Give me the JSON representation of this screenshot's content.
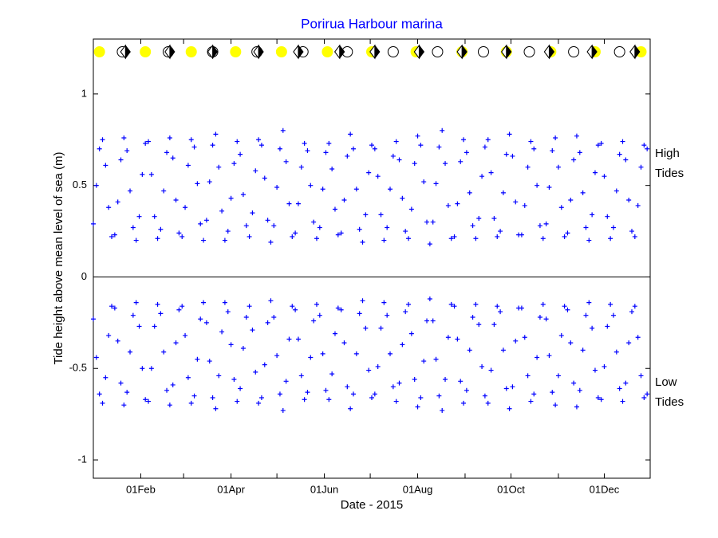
{
  "chart_data": {
    "type": "scatter",
    "title": "Porirua Harbour marina",
    "x_label": "Date - 2015",
    "y_label": "Tide height above mean level of sea (m)",
    "xlim": [
      1,
      365
    ],
    "ylim": [
      -1.1,
      1.3
    ],
    "xticks": [
      {
        "value": 32,
        "label": "01Feb"
      },
      {
        "value": 91,
        "label": "01Apr"
      },
      {
        "value": 152,
        "label": "01Jun"
      },
      {
        "value": 213,
        "label": "01Aug"
      },
      {
        "value": 274,
        "label": "01Oct"
      },
      {
        "value": 335,
        "label": "01Dec"
      }
    ],
    "xminorticks": [
      60,
      121,
      182,
      244,
      305
    ],
    "yticks": [
      -1,
      -0.5,
      0,
      0.5,
      1
    ],
    "zero_line": true,
    "title_color": "#0000ff",
    "x": [
      1,
      3,
      5,
      7,
      9,
      11,
      13,
      15,
      17,
      19,
      21,
      23,
      25,
      27,
      29,
      31,
      33,
      35,
      37,
      39,
      41,
      43,
      45,
      47,
      49,
      51,
      53,
      55,
      57,
      59,
      61,
      63,
      65,
      67,
      69,
      71,
      73,
      75,
      77,
      79,
      81,
      83,
      85,
      87,
      89,
      91,
      93,
      95,
      97,
      99,
      101,
      103,
      105,
      107,
      109,
      111,
      113,
      115,
      117,
      119,
      121,
      123,
      125,
      127,
      129,
      131,
      133,
      135,
      137,
      139,
      141,
      143,
      145,
      147,
      149,
      151,
      153,
      155,
      157,
      159,
      161,
      163,
      165,
      167,
      169,
      171,
      173,
      175,
      177,
      179,
      181,
      183,
      185,
      187,
      189,
      191,
      193,
      195,
      197,
      199,
      201,
      203,
      205,
      207,
      209,
      211,
      213,
      215,
      217,
      219,
      221,
      223,
      225,
      227,
      229,
      231,
      233,
      235,
      237,
      239,
      241,
      243,
      245,
      247,
      249,
      251,
      253,
      255,
      257,
      259,
      261,
      263,
      265,
      267,
      269,
      271,
      273,
      275,
      277,
      279,
      281,
      283,
      285,
      287,
      289,
      291,
      293,
      295,
      297,
      299,
      301,
      303,
      305,
      307,
      309,
      311,
      313,
      315,
      317,
      319,
      321,
      323,
      325,
      327,
      329,
      331,
      333,
      335,
      337,
      339,
      341,
      343,
      345,
      347,
      349,
      351,
      353,
      355,
      357,
      359,
      361,
      363
    ],
    "series": [
      {
        "name": "High Tides",
        "color": "#0000ff",
        "values": [
          0.29,
          0.5,
          0.7,
          0.75,
          0.61,
          0.38,
          0.22,
          0.23,
          0.41,
          0.64,
          0.76,
          0.69,
          0.47,
          0.27,
          0.2,
          0.33,
          0.56,
          0.73,
          0.74,
          0.56,
          0.33,
          0.21,
          0.26,
          0.47,
          0.68,
          0.76,
          0.65,
          0.42,
          0.24,
          0.22,
          0.38,
          0.61,
          0.75,
          0.71,
          0.51,
          0.29,
          0.2,
          0.31,
          0.52,
          0.72,
          0.78,
          0.6,
          0.36,
          0.2,
          0.25,
          0.43,
          0.62,
          0.74,
          0.67,
          0.45,
          0.28,
          0.22,
          0.35,
          0.58,
          0.75,
          0.72,
          0.54,
          0.31,
          0.19,
          0.28,
          0.49,
          0.7,
          0.8,
          0.63,
          0.4,
          0.22,
          0.24,
          0.4,
          0.6,
          0.73,
          0.69,
          0.5,
          0.3,
          0.21,
          0.27,
          0.48,
          0.68,
          0.73,
          0.59,
          0.37,
          0.23,
          0.24,
          0.42,
          0.66,
          0.78,
          0.7,
          0.48,
          0.26,
          0.19,
          0.34,
          0.57,
          0.72,
          0.7,
          0.55,
          0.34,
          0.2,
          0.27,
          0.48,
          0.66,
          0.74,
          0.64,
          0.43,
          0.25,
          0.21,
          0.37,
          0.62,
          0.77,
          0.72,
          0.52,
          0.3,
          0.18,
          0.3,
          0.51,
          0.71,
          0.8,
          0.62,
          0.39,
          0.21,
          0.22,
          0.4,
          0.63,
          0.75,
          0.68,
          0.46,
          0.28,
          0.21,
          0.32,
          0.55,
          0.71,
          0.75,
          0.57,
          0.32,
          0.22,
          0.25,
          0.46,
          0.67,
          0.78,
          0.66,
          0.41,
          0.23,
          0.23,
          0.39,
          0.6,
          0.74,
          0.7,
          0.5,
          0.28,
          0.21,
          0.29,
          0.49,
          0.69,
          0.76,
          0.6,
          0.38,
          0.22,
          0.24,
          0.42,
          0.64,
          0.77,
          0.68,
          0.46,
          0.27,
          0.2,
          0.34,
          0.57,
          0.72,
          0.73,
          0.55,
          0.33,
          0.21,
          0.27,
          0.47,
          0.67,
          0.74,
          0.64,
          0.42,
          0.25,
          0.22,
          0.39,
          0.6,
          0.72,
          0.7
        ]
      },
      {
        "name": "Low Tides",
        "color": "#0000ff",
        "values": [
          -0.23,
          -0.44,
          -0.64,
          -0.69,
          -0.55,
          -0.32,
          -0.16,
          -0.17,
          -0.35,
          -0.58,
          -0.7,
          -0.63,
          -0.41,
          -0.21,
          -0.14,
          -0.27,
          -0.5,
          -0.67,
          -0.68,
          -0.5,
          -0.27,
          -0.15,
          -0.2,
          -0.41,
          -0.62,
          -0.7,
          -0.59,
          -0.36,
          -0.18,
          -0.16,
          -0.32,
          -0.55,
          -0.69,
          -0.65,
          -0.45,
          -0.23,
          -0.14,
          -0.25,
          -0.46,
          -0.66,
          -0.72,
          -0.54,
          -0.3,
          -0.14,
          -0.19,
          -0.37,
          -0.56,
          -0.68,
          -0.61,
          -0.39,
          -0.22,
          -0.16,
          -0.29,
          -0.52,
          -0.69,
          -0.66,
          -0.48,
          -0.25,
          -0.13,
          -0.22,
          -0.43,
          -0.64,
          -0.73,
          -0.57,
          -0.34,
          -0.16,
          -0.18,
          -0.34,
          -0.54,
          -0.67,
          -0.63,
          -0.44,
          -0.24,
          -0.15,
          -0.21,
          -0.42,
          -0.62,
          -0.67,
          -0.53,
          -0.31,
          -0.17,
          -0.18,
          -0.36,
          -0.6,
          -0.72,
          -0.64,
          -0.42,
          -0.2,
          -0.13,
          -0.28,
          -0.51,
          -0.66,
          -0.64,
          -0.49,
          -0.28,
          -0.14,
          -0.21,
          -0.42,
          -0.6,
          -0.68,
          -0.58,
          -0.37,
          -0.19,
          -0.15,
          -0.31,
          -0.56,
          -0.71,
          -0.66,
          -0.46,
          -0.24,
          -0.12,
          -0.24,
          -0.45,
          -0.65,
          -0.73,
          -0.56,
          -0.33,
          -0.15,
          -0.16,
          -0.34,
          -0.57,
          -0.69,
          -0.62,
          -0.4,
          -0.22,
          -0.15,
          -0.26,
          -0.49,
          -0.65,
          -0.69,
          -0.51,
          -0.26,
          -0.16,
          -0.19,
          -0.4,
          -0.61,
          -0.72,
          -0.6,
          -0.35,
          -0.17,
          -0.17,
          -0.33,
          -0.54,
          -0.68,
          -0.64,
          -0.44,
          -0.22,
          -0.15,
          -0.23,
          -0.43,
          -0.63,
          -0.7,
          -0.54,
          -0.32,
          -0.16,
          -0.18,
          -0.36,
          -0.58,
          -0.71,
          -0.62,
          -0.4,
          -0.21,
          -0.14,
          -0.28,
          -0.51,
          -0.66,
          -0.67,
          -0.49,
          -0.27,
          -0.15,
          -0.21,
          -0.41,
          -0.61,
          -0.68,
          -0.58,
          -0.36,
          -0.19,
          -0.16,
          -0.33,
          -0.54,
          -0.66,
          -0.64
        ]
      }
    ],
    "full_moon": {
      "color": "#ffff00",
      "x": [
        5,
        35,
        65,
        94,
        124,
        154,
        183,
        212,
        242,
        271,
        300,
        329,
        359
      ]
    },
    "new_moon": {
      "color": "#ffffff",
      "x": [
        20,
        50,
        79,
        108,
        138,
        167,
        197,
        226,
        256,
        286,
        315,
        345
      ]
    },
    "perigee": {
      "color": "#000000",
      "x": [
        22,
        51,
        79,
        109,
        135,
        162,
        185,
        214,
        242,
        271,
        299,
        327,
        355
      ]
    }
  }
}
